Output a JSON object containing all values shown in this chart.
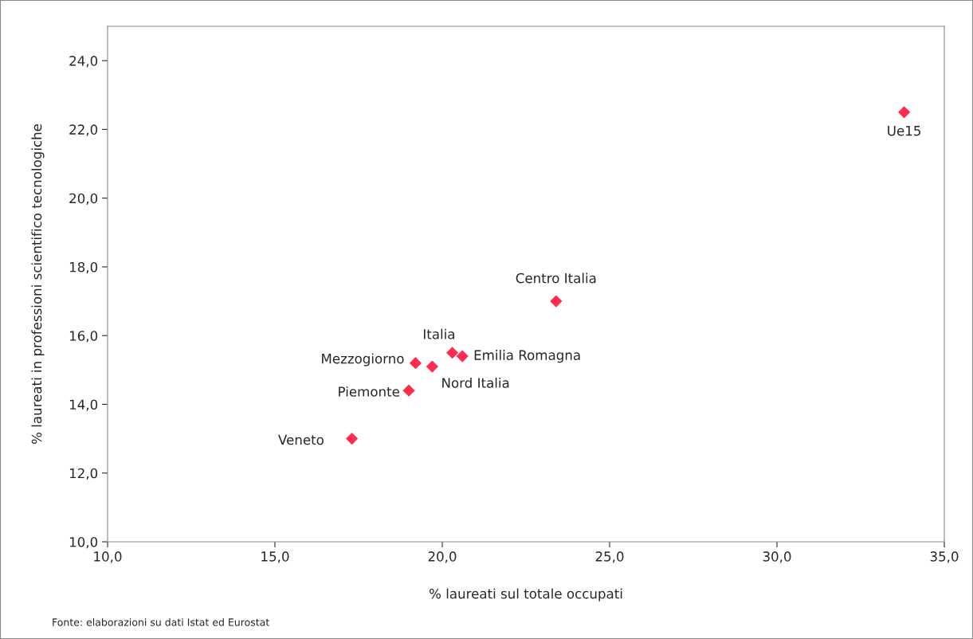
{
  "chart_data": {
    "type": "scatter",
    "xlabel": "% laureati sul totale occupati",
    "ylabel": "% laureati in professioni scientifico tecnologiche",
    "x": [
      33.8,
      23.4,
      20.3,
      20.6,
      19.2,
      19.7,
      19.0,
      17.3
    ],
    "series": [
      {
        "color": "#ff2d4d",
        "values": [
          22.5,
          17.0,
          15.5,
          15.4,
          15.2,
          15.1,
          14.4,
          13.0
        ]
      }
    ],
    "marker": "diamond",
    "grid": false,
    "xlim": [
      10,
      35
    ],
    "xticks": [
      {
        "value": 10,
        "label": "10,0"
      },
      {
        "value": 15,
        "label": "15,0"
      },
      {
        "value": 20,
        "label": "20,0"
      },
      {
        "value": 25,
        "label": "25,0"
      },
      {
        "value": 30,
        "label": "30,0"
      },
      {
        "value": 35,
        "label": "35,0"
      }
    ],
    "ylim": [
      10,
      25
    ],
    "yticks": [
      {
        "value": 10,
        "label": "10,0"
      },
      {
        "value": 12,
        "label": "12,0"
      },
      {
        "value": 14,
        "label": "14,0"
      },
      {
        "value": 16,
        "label": "16,0"
      },
      {
        "value": 18,
        "label": "18,0"
      },
      {
        "value": 20,
        "label": "20,0"
      },
      {
        "value": 22,
        "label": "22,0"
      },
      {
        "value": 24,
        "label": "24,0"
      }
    ],
    "annotations": [
      {
        "text": "Ue15",
        "x": 33.8,
        "y": 22.5
      },
      {
        "text": "Centro Italia",
        "x": 23.4,
        "y": 17.0
      },
      {
        "text": "Italia",
        "x": 20.3,
        "y": 15.5
      },
      {
        "text": "Emilia Romagna",
        "x": 20.6,
        "y": 15.4
      },
      {
        "text": "Mezzogiorno",
        "x": 19.2,
        "y": 15.2
      },
      {
        "text": "Nord Italia",
        "x": 19.7,
        "y": 15.1
      },
      {
        "text": "Piemonte",
        "x": 19.0,
        "y": 14.4
      },
      {
        "text": "Veneto",
        "x": 17.3,
        "y": 13.0
      },
      "Fonte: elaborazioni su dati Istat ed Eurostat"
    ]
  }
}
